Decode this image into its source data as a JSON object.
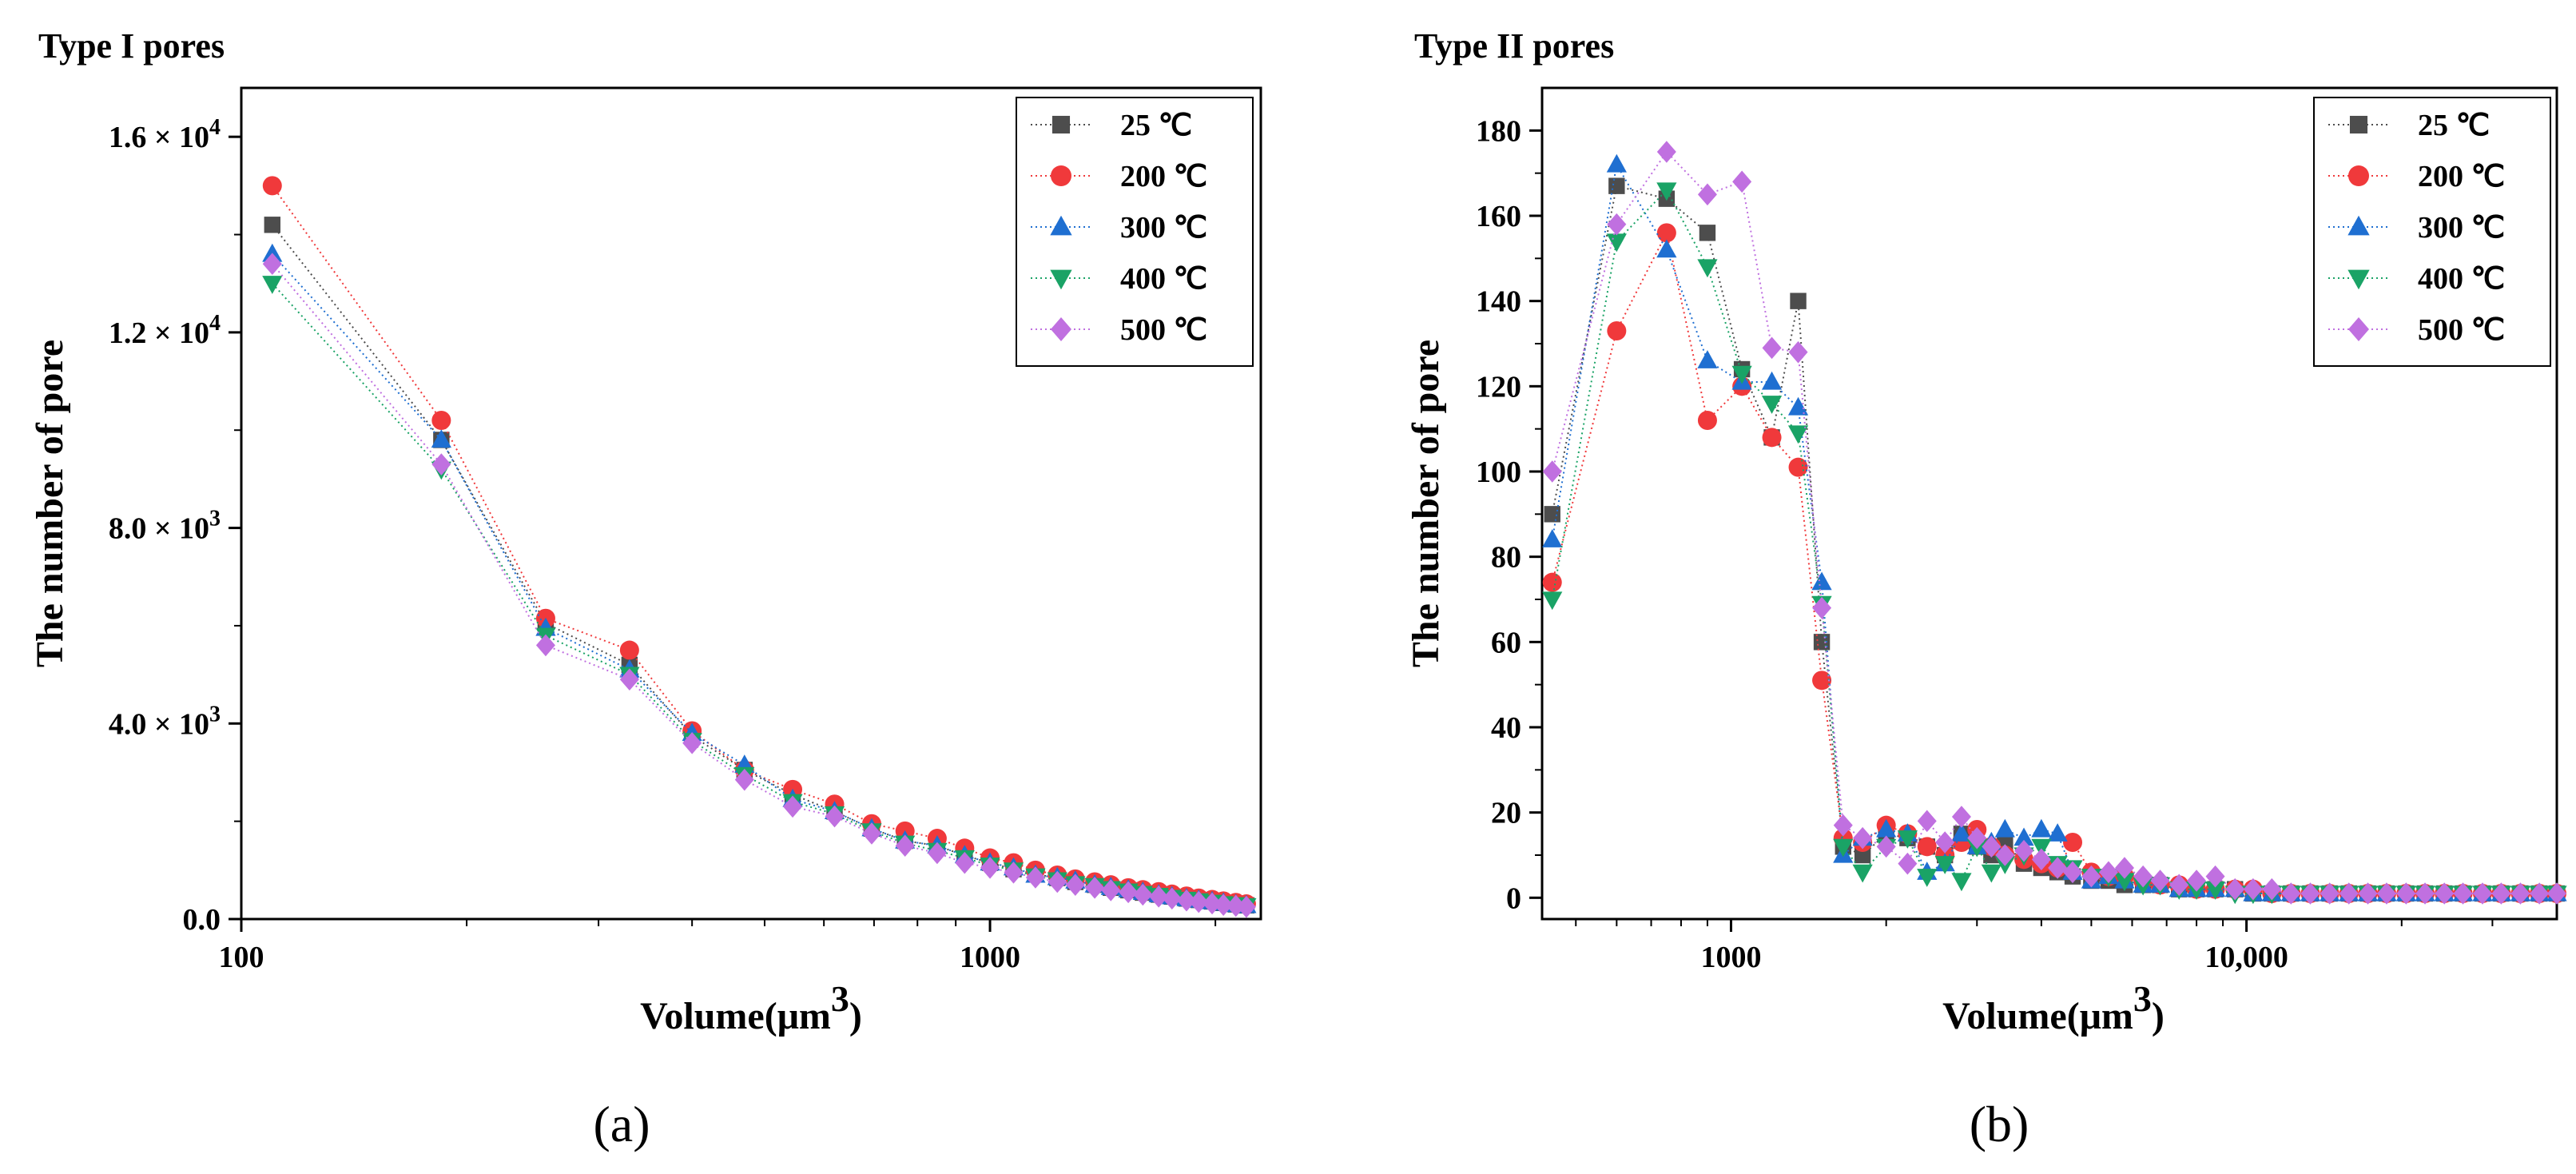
{
  "chart_data": [
    {
      "type": "scatter",
      "panel_label": "(a)",
      "title": "Type I pores",
      "xlabel": "Volume(μm",
      "xlabel_sup": "3",
      "xlabel_close": ")",
      "ylabel": "The number of pore",
      "xscale": "log",
      "xlim": [
        100,
        2300
      ],
      "ylim": [
        0,
        17000
      ],
      "xticks": [
        {
          "v": 100,
          "label": "100"
        },
        {
          "v": 1000,
          "label": "1000"
        }
      ],
      "yticks": [
        {
          "v": 0,
          "mant": "0.0"
        },
        {
          "v": 4000,
          "mant": "4.0",
          "times": "× 10",
          "exp": "3"
        },
        {
          "v": 8000,
          "mant": "8.0",
          "times": "× 10",
          "exp": "3"
        },
        {
          "v": 12000,
          "mant": "1.2",
          "times": "× 10",
          "exp": "4"
        },
        {
          "v": 16000,
          "mant": "1.6",
          "times": "× 10",
          "exp": "4"
        }
      ],
      "legend_position": "top-right",
      "x": [
        110,
        185,
        255,
        330,
        400,
        470,
        545,
        620,
        695,
        770,
        850,
        925,
        1000,
        1075,
        1150,
        1230,
        1300,
        1380,
        1450,
        1530,
        1600,
        1680,
        1750,
        1830,
        1900,
        1980,
        2050,
        2130,
        2200
      ],
      "series": [
        {
          "name": "25 ℃",
          "marker": "square",
          "color": "#4d4d4d",
          "values": [
            14200,
            9800,
            6050,
            5200,
            3750,
            3050,
            2550,
            2200,
            1850,
            1600,
            1500,
            1300,
            1150,
            1020,
            920,
            840,
            760,
            700,
            640,
            590,
            540,
            500,
            460,
            420,
            390,
            360,
            330,
            300,
            280
          ]
        },
        {
          "name": "200 ℃",
          "marker": "circle",
          "color": "#f0393b",
          "values": [
            15000,
            10200,
            6150,
            5500,
            3850,
            3050,
            2650,
            2350,
            1950,
            1800,
            1650,
            1450,
            1250,
            1150,
            1000,
            900,
            820,
            760,
            700,
            640,
            600,
            560,
            510,
            470,
            430,
            400,
            370,
            340,
            310
          ]
        },
        {
          "name": "300 ℃",
          "marker": "triangle-up",
          "color": "#1f6fd1",
          "values": [
            13600,
            9800,
            5950,
            5100,
            3800,
            3150,
            2450,
            2200,
            1850,
            1600,
            1500,
            1300,
            1150,
            1050,
            900,
            850,
            780,
            700,
            650,
            600,
            550,
            500,
            460,
            420,
            390,
            360,
            330,
            300,
            280
          ]
        },
        {
          "name": "400 ℃",
          "marker": "triangle-down",
          "color": "#1aa366",
          "values": [
            13000,
            9200,
            5800,
            5000,
            3650,
            2950,
            2400,
            2150,
            1800,
            1550,
            1400,
            1250,
            1100,
            1000,
            880,
            800,
            720,
            680,
            620,
            570,
            520,
            480,
            440,
            400,
            370,
            340,
            310,
            290,
            270
          ]
        },
        {
          "name": "500 ℃",
          "marker": "diamond",
          "color": "#c070e0",
          "values": [
            13400,
            9300,
            5600,
            4900,
            3600,
            2850,
            2300,
            2100,
            1750,
            1500,
            1350,
            1150,
            1050,
            950,
            850,
            760,
            700,
            640,
            590,
            550,
            500,
            460,
            420,
            380,
            350,
            320,
            290,
            270,
            250
          ]
        }
      ]
    },
    {
      "type": "scatter",
      "panel_label": "(b)",
      "title": "Type II pores",
      "xlabel": "Volume(μm",
      "xlabel_sup": "3",
      "xlabel_close": ")",
      "ylabel": "The number of pore",
      "xscale": "log",
      "xlim": [
        430,
        40000
      ],
      "ylim": [
        -5,
        190
      ],
      "xticks": [
        {
          "v": 1000,
          "label": "1000"
        },
        {
          "v": 10000,
          "label": "10,000"
        }
      ],
      "yticks": [
        {
          "v": 0,
          "label": "0"
        },
        {
          "v": 20,
          "label": "20"
        },
        {
          "v": 40,
          "label": "40"
        },
        {
          "v": 60,
          "label": "60"
        },
        {
          "v": 80,
          "label": "80"
        },
        {
          "v": 100,
          "label": "100"
        },
        {
          "v": 120,
          "label": "120"
        },
        {
          "v": 140,
          "label": "140"
        },
        {
          "v": 160,
          "label": "160"
        },
        {
          "v": 180,
          "label": "180"
        }
      ],
      "legend_position": "top-right",
      "x": [
        450,
        600,
        750,
        900,
        1050,
        1200,
        1350,
        1500,
        1650,
        1800,
        2000,
        2200,
        2400,
        2600,
        2800,
        3000,
        3200,
        3400,
        3700,
        4000,
        4300,
        4600,
        5000,
        5400,
        5800,
        6300,
        6800,
        7400,
        8000,
        8700,
        9500,
        10300,
        11200,
        12200,
        13300,
        14500,
        15800,
        17200,
        18700,
        20400,
        22200,
        24200,
        26300,
        28700,
        31200,
        34000,
        37000,
        40000
      ],
      "series": [
        {
          "name": "25 ℃",
          "marker": "square",
          "color": "#4d4d4d",
          "values": [
            90,
            167,
            164,
            156,
            124,
            108,
            140,
            60,
            12,
            10,
            15,
            14,
            12,
            10,
            15,
            12,
            10,
            13,
            8,
            7,
            6,
            5,
            4,
            4,
            3,
            3,
            3,
            2,
            2,
            2,
            2,
            1,
            1,
            1,
            1,
            1,
            1,
            1,
            1,
            1,
            1,
            1,
            1,
            1,
            1,
            1,
            1,
            1
          ]
        },
        {
          "name": "200 ℃",
          "marker": "circle",
          "color": "#f0393b",
          "values": [
            74,
            133,
            156,
            112,
            120,
            108,
            101,
            51,
            14,
            13,
            17,
            15,
            12,
            10,
            13,
            16,
            12,
            10,
            9,
            8,
            7,
            13,
            6,
            5,
            5,
            4,
            3,
            3,
            2,
            2,
            2,
            2,
            1,
            1,
            1,
            1,
            1,
            1,
            1,
            1,
            1,
            1,
            1,
            1,
            1,
            1,
            1,
            1
          ]
        },
        {
          "name": "300 ℃",
          "marker": "triangle-up",
          "color": "#1f6fd1",
          "values": [
            84,
            172,
            152,
            126,
            121,
            121,
            115,
            74,
            10,
            14,
            16,
            15,
            6,
            8,
            15,
            12,
            13,
            16,
            14,
            16,
            15,
            6,
            4,
            5,
            4,
            3,
            3,
            2,
            2,
            2,
            2,
            1,
            1,
            1,
            1,
            1,
            1,
            1,
            1,
            1,
            1,
            1,
            1,
            1,
            1,
            1,
            1,
            1
          ]
        },
        {
          "name": "400 ℃",
          "marker": "triangle-down",
          "color": "#1aa366",
          "values": [
            70,
            154,
            166,
            148,
            123,
            116,
            109,
            69,
            12,
            6,
            12,
            14,
            5,
            8,
            4,
            12,
            6,
            8,
            10,
            12,
            8,
            7,
            5,
            5,
            4,
            3,
            3,
            2,
            2,
            2,
            1,
            1,
            1,
            1,
            1,
            1,
            1,
            1,
            1,
            1,
            1,
            1,
            1,
            1,
            1,
            1,
            1,
            1
          ]
        },
        {
          "name": "500 ℃",
          "marker": "diamond",
          "color": "#c070e0",
          "values": [
            100,
            158,
            175,
            165,
            168,
            129,
            128,
            68,
            17,
            14,
            12,
            8,
            18,
            13,
            19,
            14,
            12,
            10,
            11,
            9,
            7,
            6,
            5,
            6,
            7,
            5,
            4,
            3,
            4,
            5,
            2,
            2,
            2,
            1,
            1,
            1,
            1,
            1,
            1,
            1,
            1,
            1,
            1,
            1,
            1,
            1,
            1,
            1
          ]
        }
      ]
    }
  ]
}
